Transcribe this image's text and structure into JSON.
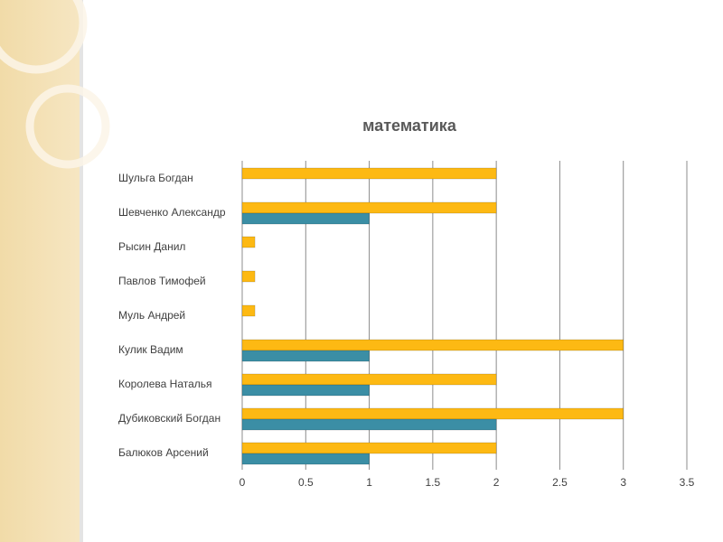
{
  "chart_data": {
    "type": "bar",
    "orientation": "horizontal",
    "title": "математика",
    "categories": [
      "Шульга Богдан",
      "Шевченко Александр",
      "Рысин Данил",
      "Павлов Тимофей",
      "Муль Андрей",
      "Кулик Вадим",
      "Королева Наталья",
      "Дубиковский Богдан",
      "Балюков Арсений"
    ],
    "series": [
      {
        "color": "#fdb913",
        "values": [
          2,
          2,
          0.1,
          0.1,
          0.1,
          3,
          2,
          3,
          2
        ]
      },
      {
        "color": "#3b8ea5",
        "values": [
          0,
          1,
          0,
          0,
          0,
          1,
          1,
          2,
          1
        ]
      }
    ],
    "xlim": [
      0,
      3.5
    ],
    "xticks": [
      0,
      0.5,
      1,
      1.5,
      2,
      2.5,
      3,
      3.5
    ],
    "grid": true
  }
}
